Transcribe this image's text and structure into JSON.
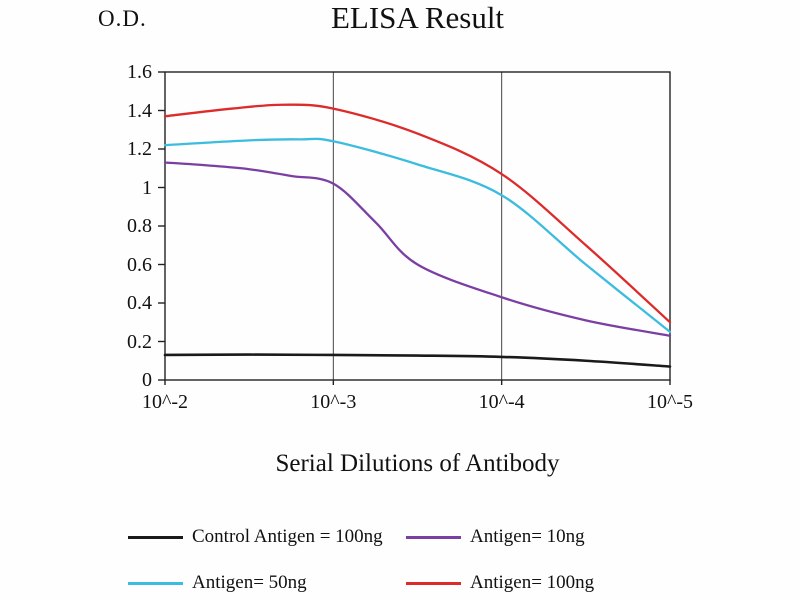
{
  "chart_data": {
    "type": "line",
    "title": "ELISA Result",
    "ylabel": "O.D.",
    "xlabel": "Serial Dilutions of Antibody",
    "x_tick_labels": [
      "10^-2",
      "10^-3",
      "10^-4",
      "10^-5"
    ],
    "y_tick_labels": [
      "0",
      "0.2",
      "0.4",
      "0.6",
      "0.8",
      "1",
      "1.2",
      "1.4",
      "1.6"
    ],
    "ylim": [
      0,
      1.6
    ],
    "x_axis_note": "x values are decade steps: 0=10^-2, 1=10^-3, 2=10^-4, 3=10^-5",
    "grid": "vertical gridlines at each decade, boxed plot area",
    "legend_position": "bottom",
    "colors": {
      "control": "#1a1a1a",
      "antigen_10ng": "#7b3fa3",
      "antigen_50ng": "#3cbcdf",
      "antigen_100ng": "#dd2a2a"
    },
    "series": [
      {
        "name": "Control Antigen = 100ng",
        "color": "#1a1a1a",
        "points": [
          [
            0,
            0.13
          ],
          [
            0.5,
            0.132
          ],
          [
            1,
            0.13
          ],
          [
            1.5,
            0.127
          ],
          [
            2,
            0.12
          ],
          [
            2.5,
            0.1
          ],
          [
            3,
            0.07
          ]
        ]
      },
      {
        "name": "Antigen= 10ng",
        "color": "#7b3fa3",
        "points": [
          [
            0,
            1.13
          ],
          [
            0.25,
            1.115
          ],
          [
            0.5,
            1.095
          ],
          [
            0.75,
            1.06
          ],
          [
            1,
            1.02
          ],
          [
            1.25,
            0.82
          ],
          [
            1.5,
            0.6
          ],
          [
            2,
            0.43
          ],
          [
            2.5,
            0.31
          ],
          [
            3,
            0.23
          ]
        ]
      },
      {
        "name": "Antigen= 50ng",
        "color": "#3cbcdf",
        "points": [
          [
            0,
            1.22
          ],
          [
            0.5,
            1.245
          ],
          [
            0.8,
            1.25
          ],
          [
            1,
            1.24
          ],
          [
            1.5,
            1.12
          ],
          [
            2,
            0.96
          ],
          [
            2.5,
            0.6
          ],
          [
            3,
            0.25
          ]
        ]
      },
      {
        "name": "Antigen= 100ng",
        "color": "#dd2a2a",
        "points": [
          [
            0,
            1.37
          ],
          [
            0.4,
            1.41
          ],
          [
            0.7,
            1.43
          ],
          [
            1,
            1.41
          ],
          [
            1.5,
            1.28
          ],
          [
            2,
            1.07
          ],
          [
            2.5,
            0.7
          ],
          [
            3,
            0.3
          ]
        ]
      }
    ]
  }
}
